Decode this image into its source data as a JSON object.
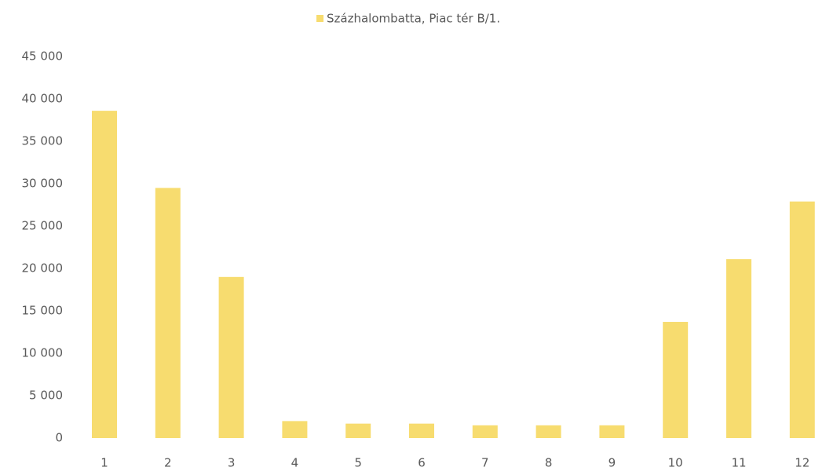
{
  "chart_data": {
    "type": "bar",
    "categories": [
      "1",
      "2",
      "3",
      "4",
      "5",
      "6",
      "7",
      "8",
      "9",
      "10",
      "11",
      "12"
    ],
    "series": [
      {
        "name": "Százhalombatta, Piac tér B/1.",
        "color": "#f7dc6f",
        "values": [
          38600,
          29500,
          19000,
          2000,
          1700,
          1700,
          1500,
          1500,
          1500,
          13700,
          21100,
          27900
        ]
      }
    ],
    "ylim": [
      0,
      45000
    ],
    "yticks": [
      0,
      {
        "value": 5000,
        "label": "5 000"
      },
      {
        "value": 10000,
        "label": "10 000"
      },
      {
        "value": 15000,
        "label": "15 000"
      },
      {
        "value": 20000,
        "label": "20 000"
      },
      {
        "value": 25000,
        "label": "25 000"
      },
      {
        "value": 30000,
        "label": "30 000"
      },
      {
        "value": 35000,
        "label": "35 000"
      },
      {
        "value": 40000,
        "label": "40 000"
      },
      {
        "value": 45000,
        "label": "45 000"
      }
    ],
    "legend": "top",
    "grid": false
  }
}
